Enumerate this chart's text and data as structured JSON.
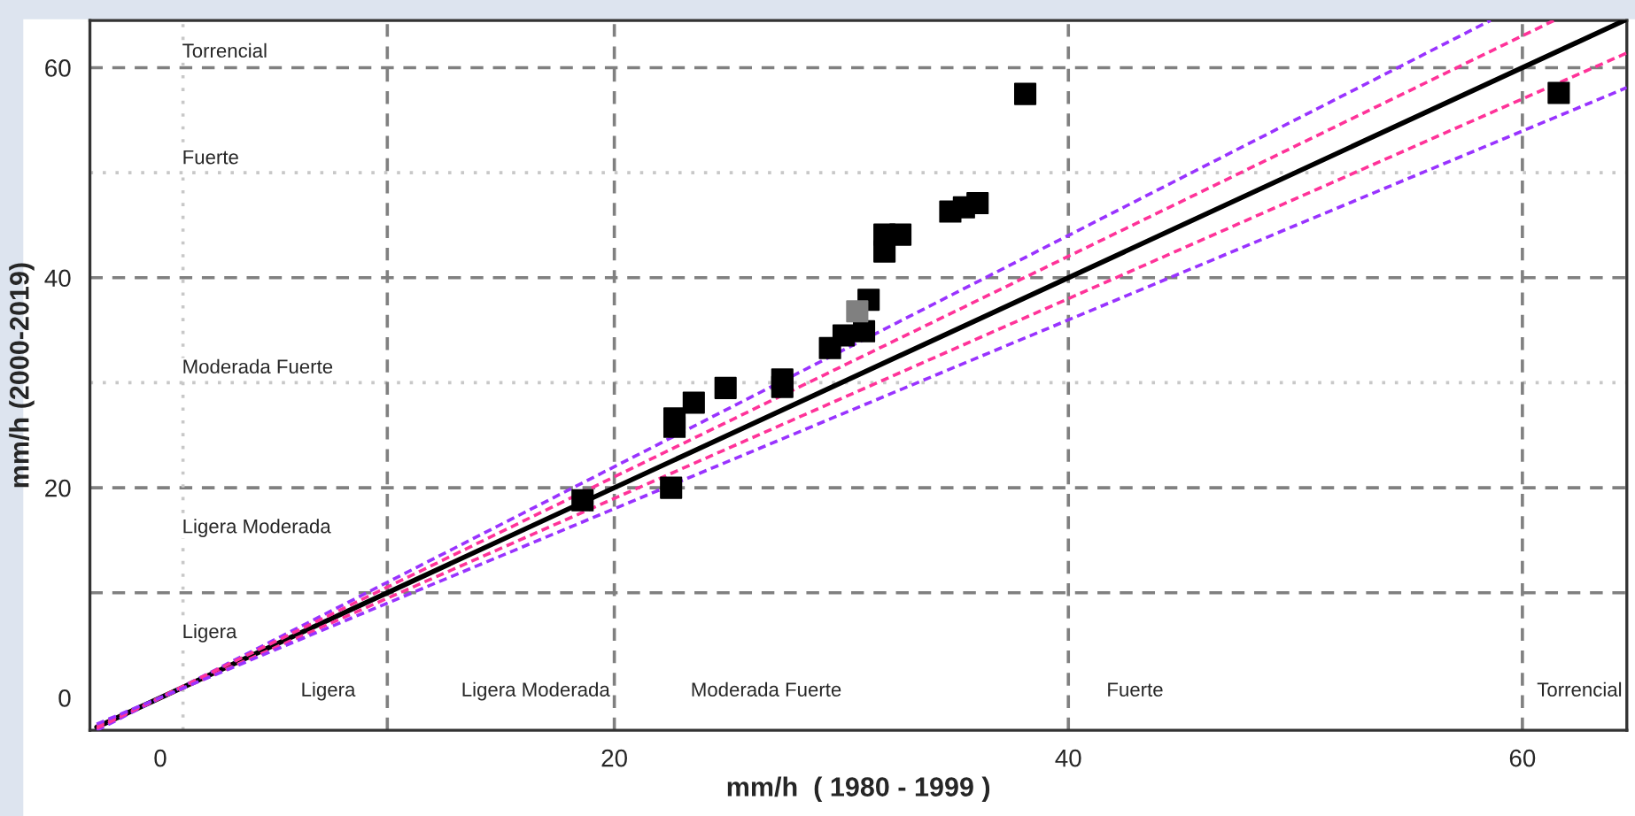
{
  "chart_data": {
    "type": "scatter",
    "xlabel": "mm/h  ( 1980 - 1999 )",
    "ylabel": "mm/h (2000-2019)",
    "xlim": [
      -3.1,
      64.6
    ],
    "ylim": [
      -3.1,
      64.5
    ],
    "xticks": [
      0,
      20,
      40,
      60
    ],
    "yticks": [
      0,
      20,
      40,
      60
    ],
    "grid": false,
    "legend": false,
    "series": [
      {
        "type": "line",
        "marker": "none",
        "color": "#9933ff",
        "line_style": "dashed",
        "x": [
          -2.8,
          58.6
        ],
        "values": [
          -3.1,
          64.5
        ]
      },
      {
        "type": "line",
        "marker": "none",
        "color": "#ff3399",
        "line_style": "dashed",
        "x": [
          -2.8,
          61.4
        ],
        "values": [
          -2.9,
          64.5
        ]
      },
      {
        "type": "line",
        "marker": "none",
        "color": "#ff3399",
        "line_style": "dashed",
        "x": [
          -2.8,
          64.6
        ],
        "values": [
          -2.7,
          61.4
        ]
      },
      {
        "type": "line",
        "marker": "none",
        "color": "#9933ff",
        "line_style": "dashed",
        "x": [
          -2.8,
          64.6
        ],
        "values": [
          -2.5,
          58.1
        ]
      },
      {
        "type": "line",
        "marker": "none",
        "color": "#000000",
        "line_style": "solid",
        "x": [
          -2.8,
          64.5
        ],
        "values": [
          -2.8,
          64.5
        ]
      },
      {
        "marker": "square",
        "color": "#000000",
        "x": [
          18.6,
          22.5,
          22.65,
          22.65,
          23.5,
          24.9,
          27.4,
          27.4,
          29.5,
          30.1,
          31.0,
          31.2,
          31.9,
          31.9,
          32.6,
          34.8,
          35.4,
          36.0,
          38.1,
          61.6
        ],
        "values": [
          18.8,
          20.0,
          26.6,
          25.8,
          28.1,
          29.5,
          30.3,
          29.6,
          33.3,
          34.5,
          34.9,
          37.9,
          42.5,
          44.1,
          44.1,
          46.3,
          46.7,
          47.1,
          57.5,
          57.6
        ]
      },
      {
        "marker": "square",
        "color": "#808080",
        "x": [
          30.7
        ],
        "values": [
          36.8
        ]
      }
    ],
    "ref_lines": [
      {
        "axis": "y",
        "value": 10,
        "line_style": "dashed",
        "color": "#808080"
      },
      {
        "axis": "y",
        "value": 20,
        "line_style": "dashed",
        "color": "#808080"
      },
      {
        "axis": "y",
        "value": 30,
        "line_style": "dotted",
        "color": "#c8c8c8"
      },
      {
        "axis": "y",
        "value": 40,
        "line_style": "dashed",
        "color": "#808080"
      },
      {
        "axis": "y",
        "value": 50,
        "line_style": "dotted",
        "color": "#c8c8c8"
      },
      {
        "axis": "y",
        "value": 60,
        "line_style": "dashed",
        "color": "#808080"
      },
      {
        "axis": "x",
        "value": 1,
        "line_style": "dotted",
        "color": "#c8c8c8"
      },
      {
        "axis": "x",
        "value": 10,
        "line_style": "dashed",
        "color": "#808080"
      },
      {
        "axis": "x",
        "value": 20,
        "line_style": "dashed",
        "color": "#808080"
      },
      {
        "axis": "x",
        "value": 40,
        "line_style": "dashed",
        "color": "#808080"
      },
      {
        "axis": "x",
        "value": 60,
        "line_style": "dashed",
        "color": "#808080"
      }
    ],
    "annotations": [
      "Torrencial",
      "Fuerte",
      "Moderada Fuerte",
      "Ligera Moderada",
      "Ligera",
      "Ligera",
      "Ligera Moderada",
      "Moderada Fuerte",
      "Fuerte",
      "Torrencial"
    ]
  }
}
